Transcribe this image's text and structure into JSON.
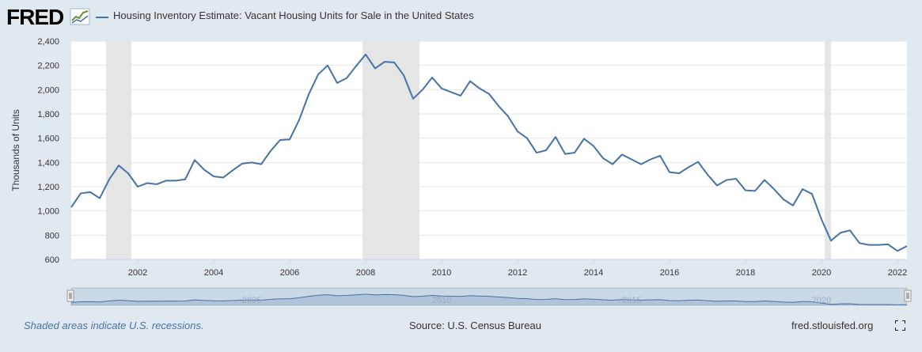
{
  "header": {
    "logo_text": "FRED"
  },
  "footer": {
    "recession_note": "Shaded areas indicate U.S. recessions.",
    "source": "Source: U.S. Census Bureau",
    "site": "fred.stlouisfed.org"
  },
  "navigator": {
    "labels": [
      "2005",
      "2010",
      "2015",
      "2020"
    ]
  },
  "icons": {
    "fullscreen": "fullscreen-icon",
    "logo_graph": "fred-graph-icon"
  },
  "colors": {
    "series": "#4572a7",
    "recession": "#e5e5e5",
    "background": "#e1e9f0",
    "plot_bg": "#ffffff"
  },
  "chart_data": {
    "type": "line",
    "title": "",
    "xlabel": "",
    "ylabel": "Thousands of Units",
    "ylim": [
      600,
      2400
    ],
    "y_ticks": [
      600,
      800,
      1000,
      1200,
      1400,
      1600,
      1800,
      2000,
      2200,
      2400
    ],
    "y_tick_labels": [
      "600",
      "800",
      "1,000",
      "1,200",
      "1,400",
      "1,600",
      "1,800",
      "2,000",
      "2,200",
      "2,400"
    ],
    "xlim": [
      "2000-04",
      "2022-04"
    ],
    "x_ticks": [
      "2002",
      "2004",
      "2006",
      "2008",
      "2010",
      "2012",
      "2014",
      "2016",
      "2018",
      "2020",
      "2022"
    ],
    "grid": true,
    "legend": "top-left",
    "recessions": [
      [
        "2001-03",
        "2001-11"
      ],
      [
        "2007-12",
        "2009-06"
      ],
      [
        "2020-02",
        "2020-04"
      ]
    ],
    "series": [
      {
        "name": "Housing Inventory Estimate: Vacant Housing Units for Sale in the United States",
        "x": [
          "2000-Q2",
          "2000-Q3",
          "2000-Q4",
          "2001-Q1",
          "2001-Q2",
          "2001-Q3",
          "2001-Q4",
          "2002-Q1",
          "2002-Q2",
          "2002-Q3",
          "2002-Q4",
          "2003-Q1",
          "2003-Q2",
          "2003-Q3",
          "2003-Q4",
          "2004-Q1",
          "2004-Q2",
          "2004-Q3",
          "2004-Q4",
          "2005-Q1",
          "2005-Q2",
          "2005-Q3",
          "2005-Q4",
          "2006-Q1",
          "2006-Q2",
          "2006-Q3",
          "2006-Q4",
          "2007-Q1",
          "2007-Q2",
          "2007-Q3",
          "2007-Q4",
          "2008-Q1",
          "2008-Q2",
          "2008-Q3",
          "2008-Q4",
          "2009-Q1",
          "2009-Q2",
          "2009-Q3",
          "2009-Q4",
          "2010-Q1",
          "2010-Q2",
          "2010-Q3",
          "2010-Q4",
          "2011-Q1",
          "2011-Q2",
          "2011-Q3",
          "2011-Q4",
          "2012-Q1",
          "2012-Q2",
          "2012-Q3",
          "2012-Q4",
          "2013-Q1",
          "2013-Q2",
          "2013-Q3",
          "2013-Q4",
          "2014-Q1",
          "2014-Q2",
          "2014-Q3",
          "2014-Q4",
          "2015-Q1",
          "2015-Q2",
          "2015-Q3",
          "2015-Q4",
          "2016-Q1",
          "2016-Q2",
          "2016-Q3",
          "2016-Q4",
          "2017-Q1",
          "2017-Q2",
          "2017-Q3",
          "2017-Q4",
          "2018-Q1",
          "2018-Q2",
          "2018-Q3",
          "2018-Q4",
          "2019-Q1",
          "2019-Q2",
          "2019-Q3",
          "2019-Q4",
          "2020-Q1",
          "2020-Q2",
          "2020-Q3",
          "2020-Q4",
          "2021-Q1",
          "2021-Q2",
          "2021-Q3",
          "2021-Q4",
          "2022-Q1",
          "2022-Q2"
        ],
        "values": [
          1030,
          1145,
          1155,
          1105,
          1260,
          1375,
          1310,
          1200,
          1230,
          1220,
          1250,
          1250,
          1260,
          1420,
          1340,
          1285,
          1275,
          1335,
          1390,
          1400,
          1385,
          1495,
          1585,
          1590,
          1750,
          1960,
          2125,
          2200,
          2055,
          2095,
          2195,
          2290,
          2175,
          2230,
          2225,
          2120,
          1925,
          2000,
          2100,
          2010,
          1980,
          1950,
          2070,
          2010,
          1965,
          1865,
          1780,
          1655,
          1600,
          1480,
          1500,
          1610,
          1470,
          1480,
          1595,
          1535,
          1435,
          1385,
          1465,
          1425,
          1385,
          1425,
          1455,
          1320,
          1310,
          1360,
          1405,
          1300,
          1210,
          1255,
          1265,
          1170,
          1165,
          1255,
          1180,
          1095,
          1045,
          1180,
          1140,
          930,
          755,
          820,
          840,
          735,
          720,
          720,
          725,
          670,
          710
        ]
      }
    ]
  }
}
